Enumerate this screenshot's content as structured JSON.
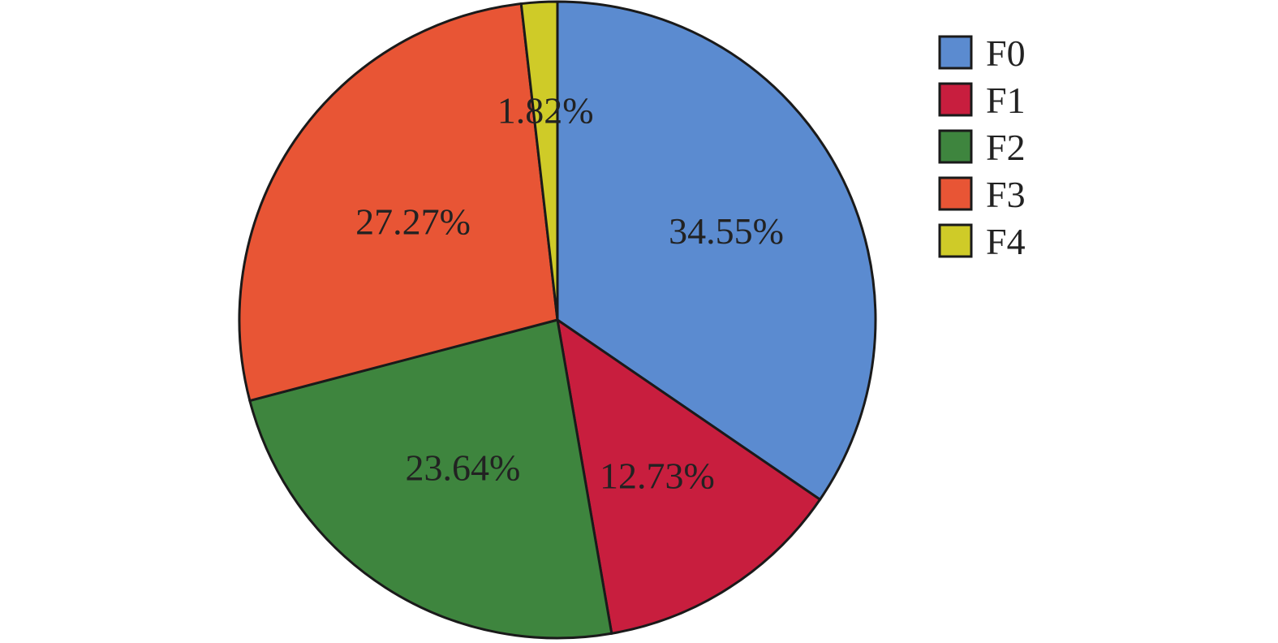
{
  "chart_data": {
    "type": "pie",
    "categories": [
      "F0",
      "F1",
      "F2",
      "F3",
      "F4"
    ],
    "values": [
      34.55,
      12.73,
      23.64,
      27.27,
      1.82
    ],
    "labels": [
      "34.55%",
      "12.73%",
      "23.64%",
      "27.27%",
      "1.82%"
    ],
    "colors": [
      "#5B8BD0",
      "#C81E3E",
      "#3E853E",
      "#E85535",
      "#CFCB28"
    ],
    "start_angle": "top",
    "direction": "clockwise",
    "legend": {
      "position": "right",
      "entries": [
        "F0",
        "F1",
        "F2",
        "F3",
        "F4"
      ]
    }
  }
}
